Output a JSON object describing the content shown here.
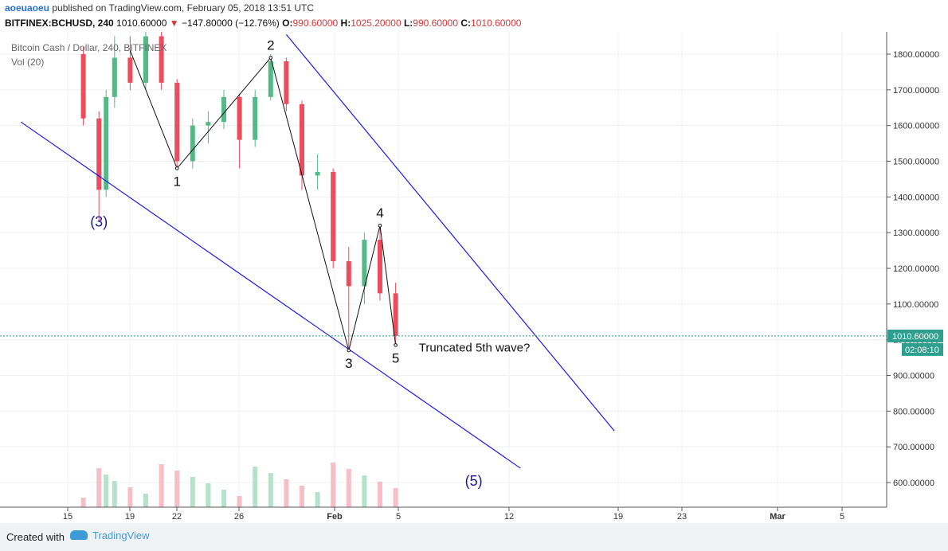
{
  "header": {
    "user": "aoeuaoeu",
    "published": "published on TradingView.com, February 05, 2018 13:51 UTC",
    "symbol": "BITFINEX:BCHUSD, 240",
    "last": "1010.60000",
    "arrow": "▼",
    "change": "−147.80000 (−12.76%)",
    "o_label": "O:",
    "o_val": "990.60000",
    "h_label": "H:",
    "h_val": "1025.20000",
    "l_label": "L:",
    "l_val": "990.60000",
    "c_label": "C:",
    "c_val": "1010.60000"
  },
  "chart_data": {
    "type": "candlestick",
    "title": "Bitcoin Cash / Dollar, 240, BITFINEX",
    "indicator": "Vol (20)",
    "x_tick_labels": [
      "15",
      "19",
      "22",
      "26",
      "Feb",
      "5",
      "12",
      "19",
      "23",
      "Mar",
      "5"
    ],
    "y_tick_labels": [
      "1800.00000",
      "1700.00000",
      "1600.00000",
      "1500.00000",
      "1400.00000",
      "1300.00000",
      "1200.00000",
      "1100.00000",
      "1000.00000",
      "900.00000",
      "800.00000",
      "700.00000",
      "600.00000"
    ],
    "ylim": [
      520,
      1860
    ],
    "last_price": 1010.6,
    "last_price_label": "1010.60000",
    "countdown": "02:08:10",
    "wave_points": [
      {
        "label": "1",
        "date": "2018-01-22",
        "price": 1480
      },
      {
        "label": "2",
        "date": "2018-01-28",
        "price": 1790
      },
      {
        "label": "3",
        "date": "2018-02-02",
        "price": 970
      },
      {
        "label": "4",
        "date": "2018-02-04",
        "price": 1320
      },
      {
        "label": "5",
        "date": "2018-02-05",
        "price": 985
      }
    ],
    "annotations": [
      {
        "text": "(3)",
        "date": "2018-01-17",
        "price": 1330
      },
      {
        "text": "Truncated 5th wave?",
        "date": "2018-02-07",
        "price": 980
      },
      {
        "text": "(5)",
        "date": "2018-02-10",
        "price": 605
      }
    ],
    "trendlines": [
      {
        "from": {
          "date": "2018-01-12",
          "price": 1610
        },
        "to": {
          "date": "2018-02-13",
          "price": 640
        }
      },
      {
        "from": {
          "date": "2018-01-29",
          "price": 1855
        },
        "to": {
          "date": "2018-02-19",
          "price": 745
        }
      }
    ],
    "candles": [
      {
        "t": "2018-01-16",
        "o": 1800,
        "h": 1820,
        "l": 1600,
        "c": 1620
      },
      {
        "t": "2018-01-17",
        "o": 1620,
        "h": 1640,
        "l": 1330,
        "c": 1420
      },
      {
        "t": "2018-01-17b",
        "o": 1420,
        "h": 1700,
        "l": 1400,
        "c": 1680
      },
      {
        "t": "2018-01-18",
        "o": 1680,
        "h": 1850,
        "l": 1650,
        "c": 1790
      },
      {
        "t": "2018-01-19",
        "o": 1790,
        "h": 1850,
        "l": 1700,
        "c": 1720
      },
      {
        "t": "2018-01-20",
        "o": 1720,
        "h": 1880,
        "l": 1700,
        "c": 1850
      },
      {
        "t": "2018-01-21",
        "o": 1850,
        "h": 1880,
        "l": 1700,
        "c": 1720
      },
      {
        "t": "2018-01-22",
        "o": 1720,
        "h": 1730,
        "l": 1480,
        "c": 1500
      },
      {
        "t": "2018-01-23",
        "o": 1500,
        "h": 1620,
        "l": 1480,
        "c": 1600
      },
      {
        "t": "2018-01-24",
        "o": 1600,
        "h": 1640,
        "l": 1550,
        "c": 1610
      },
      {
        "t": "2018-01-25",
        "o": 1610,
        "h": 1700,
        "l": 1590,
        "c": 1680
      },
      {
        "t": "2018-01-26",
        "o": 1680,
        "h": 1690,
        "l": 1480,
        "c": 1560
      },
      {
        "t": "2018-01-27",
        "o": 1560,
        "h": 1700,
        "l": 1540,
        "c": 1680
      },
      {
        "t": "2018-01-28",
        "o": 1680,
        "h": 1800,
        "l": 1670,
        "c": 1780
      },
      {
        "t": "2018-01-29",
        "o": 1780,
        "h": 1790,
        "l": 1640,
        "c": 1660
      },
      {
        "t": "2018-01-30",
        "o": 1660,
        "h": 1670,
        "l": 1420,
        "c": 1460
      },
      {
        "t": "2018-01-31",
        "o": 1460,
        "h": 1520,
        "l": 1420,
        "c": 1470
      },
      {
        "t": "2018-02-01",
        "o": 1470,
        "h": 1480,
        "l": 1200,
        "c": 1220
      },
      {
        "t": "2018-02-02",
        "o": 1220,
        "h": 1260,
        "l": 970,
        "c": 1150
      },
      {
        "t": "2018-02-03",
        "o": 1150,
        "h": 1300,
        "l": 1100,
        "c": 1280
      },
      {
        "t": "2018-02-04",
        "o": 1280,
        "h": 1320,
        "l": 1110,
        "c": 1130
      },
      {
        "t": "2018-02-05",
        "o": 1130,
        "h": 1160,
        "l": 985,
        "c": 1010.6
      }
    ]
  },
  "footer": {
    "created": "Created with",
    "brand": "TradingView"
  }
}
